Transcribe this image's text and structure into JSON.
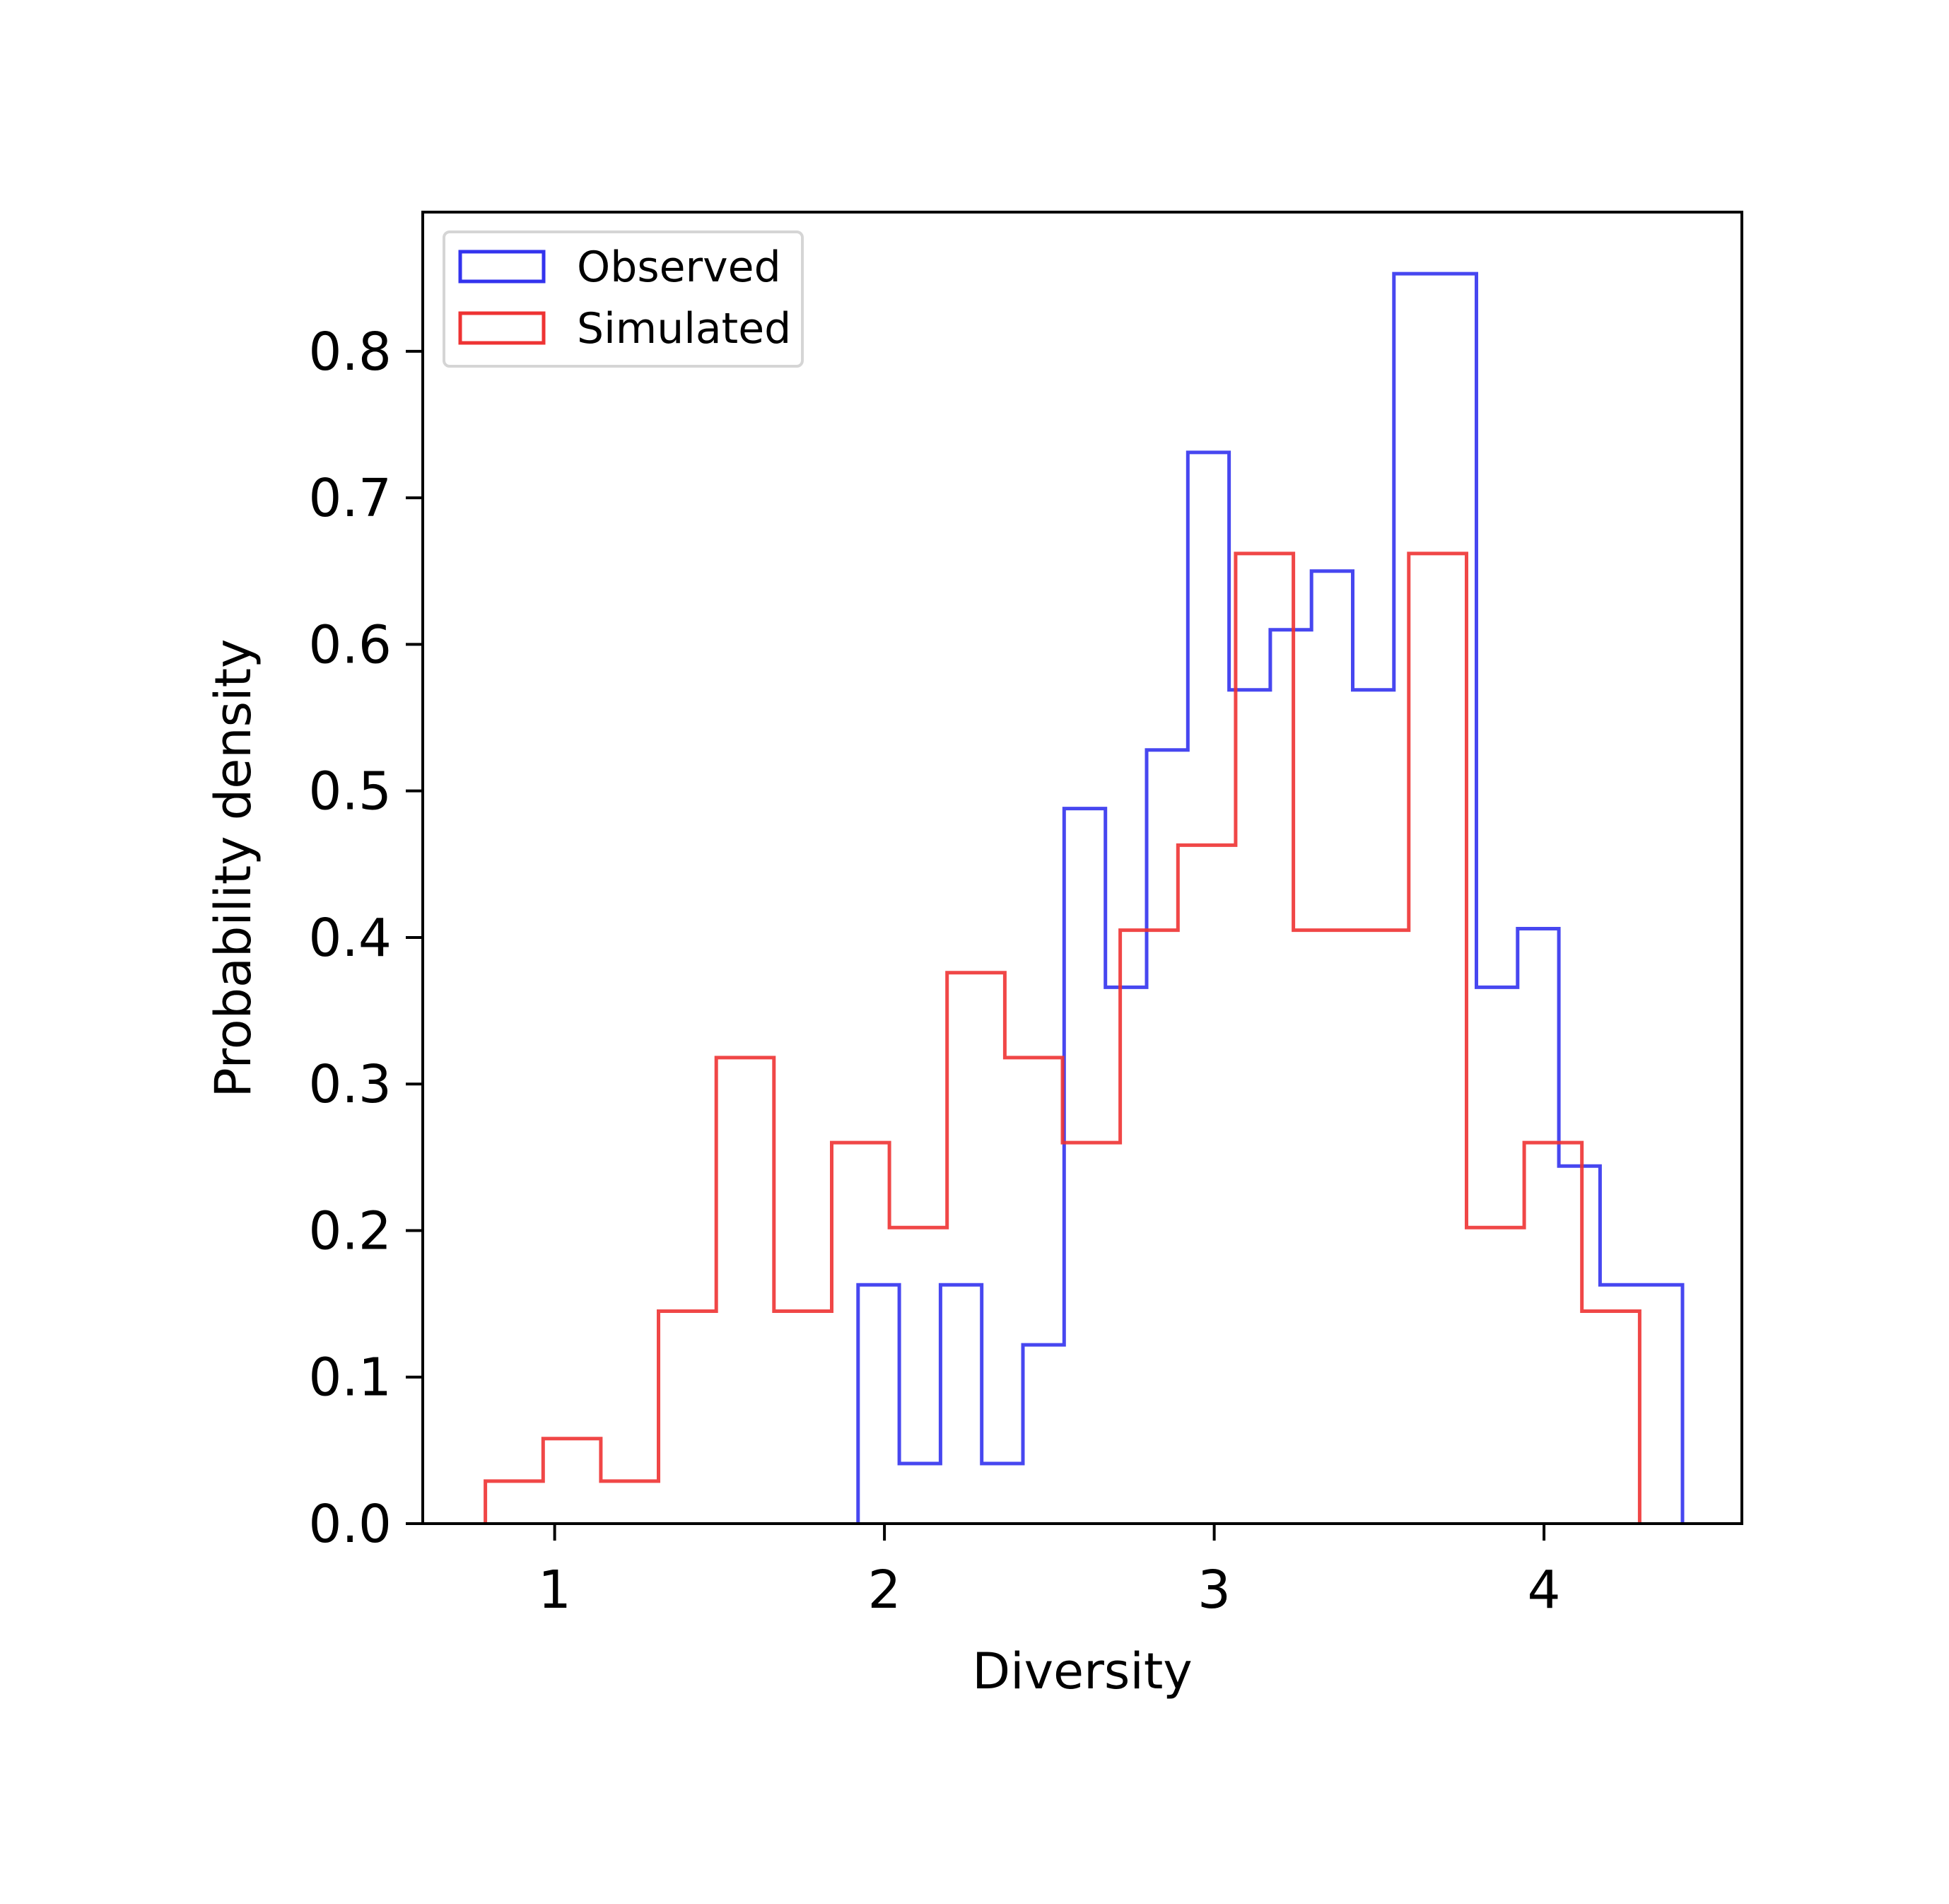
{
  "chart_data": {
    "type": "histogram",
    "title": "",
    "xlabel": "Diversity",
    "ylabel": "Probability density",
    "xlim": [
      0.6,
      4.6
    ],
    "ylim": [
      0.0,
      0.895
    ],
    "x_ticks": [
      1,
      2,
      3,
      4
    ],
    "x_tick_labels": [
      "1",
      "2",
      "3",
      "4"
    ],
    "y_ticks": [
      0.0,
      0.1,
      0.2,
      0.3,
      0.4,
      0.5,
      0.6,
      0.7,
      0.8
    ],
    "y_tick_labels": [
      "0.0",
      "0.1",
      "0.2",
      "0.3",
      "0.4",
      "0.5",
      "0.6",
      "0.7",
      "0.8"
    ],
    "grid": false,
    "legend_position": "upper-left",
    "series": [
      {
        "name": "Observed",
        "color": "#3333ee",
        "edges": [
          1.92,
          2.045,
          2.17,
          2.295,
          2.42,
          2.545,
          2.67,
          2.795,
          2.92,
          3.045,
          3.17,
          3.295,
          3.42,
          3.545,
          3.67,
          3.795,
          3.92,
          4.045,
          4.17,
          4.295,
          4.42
        ],
        "values": [
          0.163,
          0.041,
          0.163,
          0.041,
          0.122,
          0.488,
          0.366,
          0.528,
          0.731,
          0.569,
          0.61,
          0.65,
          0.569,
          0.853,
          0.853,
          0.366,
          0.406,
          0.244,
          0.163,
          0.163
        ]
      },
      {
        "name": "Simulated",
        "color": "#ee3333",
        "edges": [
          0.79,
          0.965,
          1.14,
          1.315,
          1.49,
          1.665,
          1.84,
          2.015,
          2.19,
          2.365,
          2.54,
          2.715,
          2.89,
          3.065,
          3.24,
          3.415,
          3.59,
          3.765,
          3.94,
          4.115,
          4.29
        ],
        "values": [
          0.029,
          0.058,
          0.029,
          0.145,
          0.318,
          0.145,
          0.26,
          0.202,
          0.376,
          0.318,
          0.26,
          0.405,
          0.463,
          0.662,
          0.405,
          0.405,
          0.662,
          0.202,
          0.26,
          0.145
        ]
      }
    ]
  }
}
